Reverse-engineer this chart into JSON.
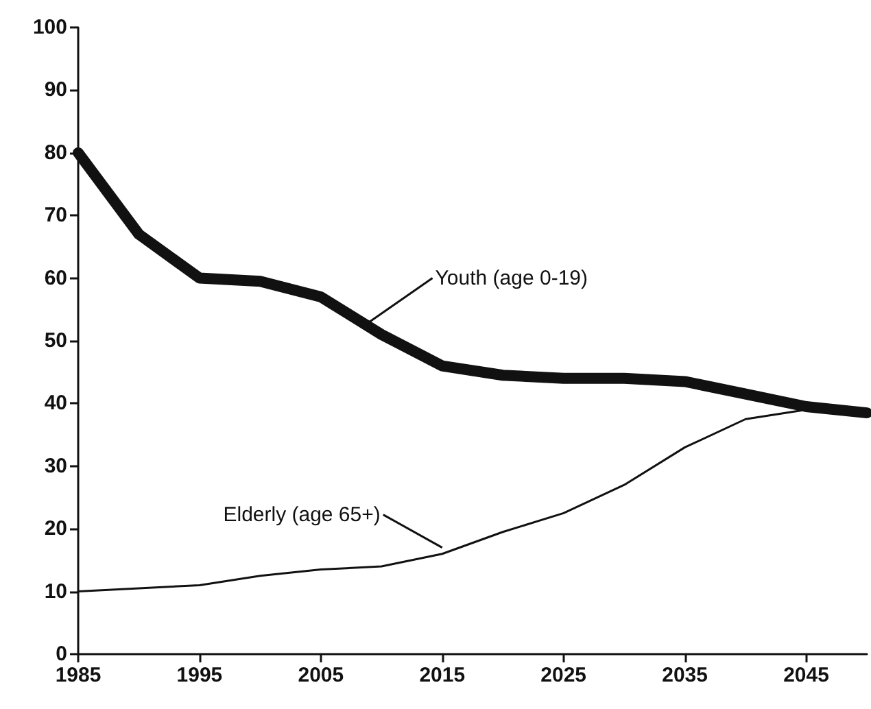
{
  "chart_data": {
    "type": "line",
    "x": [
      1985,
      1990,
      1995,
      2000,
      2005,
      2010,
      2015,
      2020,
      2025,
      2030,
      2035,
      2040,
      2045,
      2050
    ],
    "series": [
      {
        "color": "#111111",
        "values": [
          80,
          67,
          60,
          59.5,
          57,
          51,
          46,
          44.5,
          44,
          44,
          43.5,
          41.5,
          39.5,
          38.5
        ]
      },
      {
        "color": "#111111",
        "values": [
          10,
          10.5,
          11,
          12.5,
          13.5,
          14,
          16,
          19.5,
          22.5,
          27,
          33,
          37.5,
          39,
          39
        ]
      }
    ],
    "annotations": [
      {
        "text": "Youth (age 0-19)",
        "x": 2009,
        "y": 53
      },
      {
        "text": "Elderly (age 65+)",
        "x": 2015,
        "y": 17
      }
    ],
    "xlim": [
      1985,
      2050
    ],
    "xticks": [
      1985,
      1995,
      2005,
      2015,
      2025,
      2035,
      2045
    ],
    "ylim": [
      0,
      100
    ],
    "yticks": [
      0,
      10,
      20,
      30,
      40,
      50,
      60,
      70,
      80,
      90,
      100
    ],
    "grid": false,
    "marker": "none",
    "line_style": "solid"
  }
}
